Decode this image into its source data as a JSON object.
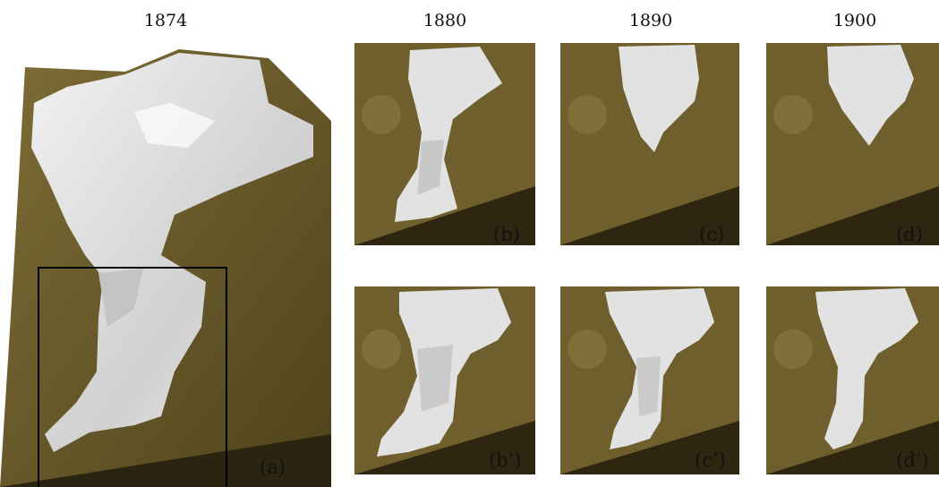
{
  "titles": {
    "a": "1874",
    "b": "1880",
    "c": "1890",
    "d": "1900"
  },
  "labels": {
    "a": "(a)",
    "b": "(b)",
    "c": "(c)",
    "d": "(d)",
    "bp": "(b’)",
    "cp": "(c’)",
    "dp": "(d’)"
  },
  "colors": {
    "terrain": "#6b5b2a",
    "terrain_light": "#8a7a44",
    "terrain_dark": "#3a3012",
    "ice": "#e4e4e4",
    "ice_shade": "#b9b9b9"
  }
}
